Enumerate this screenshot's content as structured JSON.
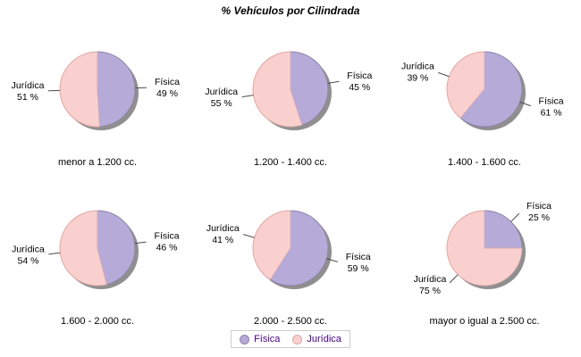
{
  "title": "% Vehículos por Cilindrada",
  "chart_data": {
    "type": "pie",
    "title": "% Vehículos por Cilindrada",
    "series_names": [
      "Física",
      "Jurídica"
    ],
    "colors": {
      "Física": {
        "fill": "#B6ABD8",
        "stroke": "#8E83AD"
      },
      "Jurídica": {
        "fill": "#FAD0CE",
        "stroke": "#D9A9A7"
      }
    },
    "shadow_color": "#8F8F8F",
    "leader_line_color": "#4D4D4D",
    "label_color": "#000000",
    "percent_suffix": " %",
    "legend_position": "bottom",
    "pies": [
      {
        "category": "menor a 1.200 cc.",
        "slices": [
          {
            "name": "Física",
            "value": 49
          },
          {
            "name": "Jurídica",
            "value": 51
          }
        ]
      },
      {
        "category": "1.200 - 1.400 cc.",
        "slices": [
          {
            "name": "Física",
            "value": 45
          },
          {
            "name": "Jurídica",
            "value": 55
          }
        ]
      },
      {
        "category": "1.400 - 1.600 cc.",
        "slices": [
          {
            "name": "Física",
            "value": 61
          },
          {
            "name": "Jurídica",
            "value": 39
          }
        ]
      },
      {
        "category": "1.600 - 2.000 cc.",
        "slices": [
          {
            "name": "Física",
            "value": 46
          },
          {
            "name": "Jurídica",
            "value": 54
          }
        ]
      },
      {
        "category": "2.000 - 2.500 cc.",
        "slices": [
          {
            "name": "Física",
            "value": 59
          },
          {
            "name": "Jurídica",
            "value": 41
          }
        ]
      },
      {
        "category": "mayor o igual a 2.500 cc.",
        "slices": [
          {
            "name": "Física",
            "value": 25
          },
          {
            "name": "Jurídica",
            "value": 75
          }
        ]
      }
    ]
  },
  "legend": {
    "items": [
      {
        "label": "Física",
        "color": "#B6ABD8",
        "border": "#8E83AD"
      },
      {
        "label": "Jurídica",
        "color": "#FAD0CE",
        "border": "#D9A9A7"
      }
    ],
    "text_color": "#4B0082",
    "border_color": "#CCCCCC"
  }
}
